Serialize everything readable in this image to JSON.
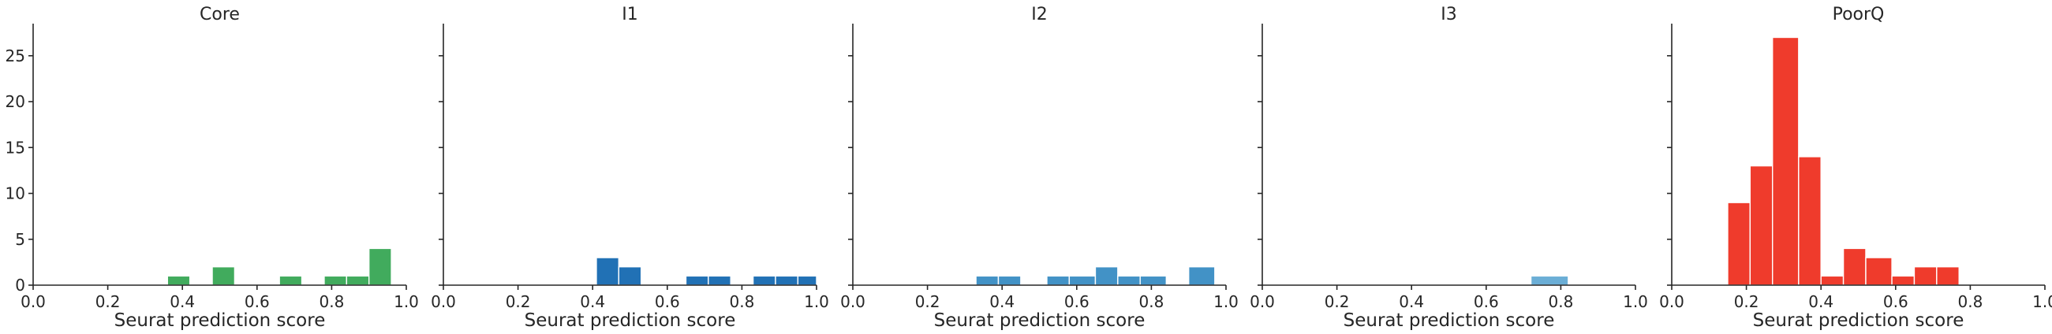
{
  "chart_data": [
    {
      "type": "bar",
      "title": "Core",
      "xlabel": "Seurat prediction score",
      "ylabel": "",
      "xlim": [
        0.0,
        1.0
      ],
      "ylim": [
        0,
        28.5
      ],
      "x_ticks": [
        "0.0",
        "0.2",
        "0.4",
        "0.6",
        "0.8",
        "1.0"
      ],
      "y_ticks": [
        "0",
        "5",
        "10",
        "15",
        "20",
        "25"
      ],
      "bin_width": 0.06,
      "color": "#41ab5d",
      "bins": [
        {
          "start": 0.36,
          "end": 0.42,
          "count": 1
        },
        {
          "start": 0.48,
          "end": 0.54,
          "count": 2
        },
        {
          "start": 0.66,
          "end": 0.72,
          "count": 1
        },
        {
          "start": 0.78,
          "end": 0.84,
          "count": 1
        },
        {
          "start": 0.84,
          "end": 0.9,
          "count": 1
        },
        {
          "start": 0.9,
          "end": 0.96,
          "count": 4
        }
      ]
    },
    {
      "type": "bar",
      "title": "I1",
      "xlabel": "Seurat prediction score",
      "ylabel": "",
      "xlim": [
        0.0,
        1.0
      ],
      "ylim": [
        0,
        28.5
      ],
      "x_ticks": [
        "0.0",
        "0.2",
        "0.4",
        "0.6",
        "0.8",
        "1.0"
      ],
      "y_ticks": [],
      "bin_width": 0.06,
      "color": "#2171b5",
      "bins": [
        {
          "start": 0.41,
          "end": 0.47,
          "count": 3
        },
        {
          "start": 0.47,
          "end": 0.53,
          "count": 2
        },
        {
          "start": 0.65,
          "end": 0.71,
          "count": 1
        },
        {
          "start": 0.71,
          "end": 0.77,
          "count": 1
        },
        {
          "start": 0.83,
          "end": 0.89,
          "count": 1
        },
        {
          "start": 0.89,
          "end": 0.95,
          "count": 1
        },
        {
          "start": 0.95,
          "end": 1.0,
          "count": 1
        }
      ]
    },
    {
      "type": "bar",
      "title": "I2",
      "xlabel": "Seurat prediction score",
      "ylabel": "",
      "xlim": [
        0.0,
        1.0
      ],
      "ylim": [
        0,
        28.5
      ],
      "x_ticks": [
        "0.0",
        "0.2",
        "0.4",
        "0.6",
        "0.8",
        "1.0"
      ],
      "y_ticks": [],
      "bin_width": 0.065,
      "color": "#4292c6",
      "bins": [
        {
          "start": 0.33,
          "end": 0.39,
          "count": 1
        },
        {
          "start": 0.39,
          "end": 0.45,
          "count": 1
        },
        {
          "start": 0.52,
          "end": 0.58,
          "count": 1
        },
        {
          "start": 0.58,
          "end": 0.65,
          "count": 1
        },
        {
          "start": 0.65,
          "end": 0.71,
          "count": 2
        },
        {
          "start": 0.71,
          "end": 0.77,
          "count": 1
        },
        {
          "start": 0.77,
          "end": 0.84,
          "count": 1
        },
        {
          "start": 0.9,
          "end": 0.97,
          "count": 2
        }
      ]
    },
    {
      "type": "bar",
      "title": "I3",
      "xlabel": "Seurat prediction score",
      "ylabel": "",
      "xlim": [
        0.0,
        1.0
      ],
      "ylim": [
        0,
        28.5
      ],
      "x_ticks": [
        "0.0",
        "0.2",
        "0.4",
        "0.6",
        "0.8",
        "1.0"
      ],
      "y_ticks": [],
      "bin_width": 0.1,
      "color": "#6baed6",
      "bins": [
        {
          "start": 0.72,
          "end": 0.82,
          "count": 1
        }
      ]
    },
    {
      "type": "bar",
      "title": "PoorQ",
      "xlabel": "Seurat prediction score",
      "ylabel": "",
      "xlim": [
        0.0,
        1.0
      ],
      "ylim": [
        0,
        28.5
      ],
      "x_ticks": [
        "0.0",
        "0.2",
        "0.4",
        "0.6",
        "0.8",
        "1.0"
      ],
      "y_ticks": [],
      "bin_width": 0.0625,
      "color": "#ef3b2c",
      "bins": [
        {
          "start": 0.15,
          "end": 0.21,
          "count": 9
        },
        {
          "start": 0.21,
          "end": 0.27,
          "count": 13
        },
        {
          "start": 0.27,
          "end": 0.34,
          "count": 27
        },
        {
          "start": 0.34,
          "end": 0.4,
          "count": 14
        },
        {
          "start": 0.4,
          "end": 0.46,
          "count": 1
        },
        {
          "start": 0.46,
          "end": 0.52,
          "count": 4
        },
        {
          "start": 0.52,
          "end": 0.59,
          "count": 3
        },
        {
          "start": 0.59,
          "end": 0.65,
          "count": 1
        },
        {
          "start": 0.65,
          "end": 0.71,
          "count": 2
        },
        {
          "start": 0.71,
          "end": 0.77,
          "count": 2
        }
      ]
    }
  ]
}
